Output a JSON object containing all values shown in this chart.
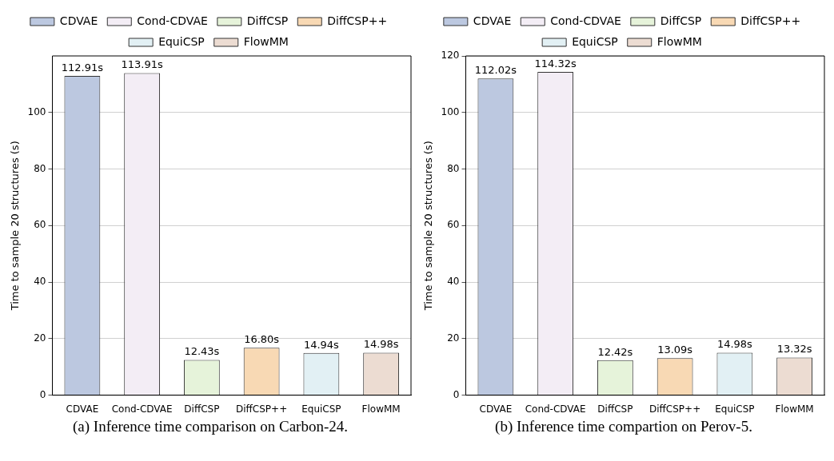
{
  "chart_data": [
    {
      "type": "bar",
      "categories": [
        "CDVAE",
        "Cond-CDVAE",
        "DiffCSP",
        "DiffCSP++",
        "EquiCSP",
        "FlowMM"
      ],
      "series": [
        {
          "name": "CDVAE",
          "color": "#bcc8e0",
          "values": [
            112.91,
            null,
            null,
            null,
            null,
            null
          ],
          "value_labels": [
            "112.91s",
            null,
            null,
            null,
            null,
            null
          ]
        },
        {
          "name": "Cond-CDVAE",
          "color": "#f3edf5",
          "values": [
            null,
            113.91,
            null,
            null,
            null,
            null
          ],
          "value_labels": [
            null,
            "113.91s",
            null,
            null,
            null,
            null
          ]
        },
        {
          "name": "DiffCSP",
          "color": "#e6f3da",
          "values": [
            null,
            null,
            12.43,
            null,
            null,
            null
          ],
          "value_labels": [
            null,
            null,
            "12.43s",
            null,
            null,
            null
          ]
        },
        {
          "name": "DiffCSP++",
          "color": "#f8d9b4",
          "values": [
            null,
            null,
            null,
            16.8,
            null,
            null
          ],
          "value_labels": [
            null,
            null,
            null,
            "16.80s",
            null,
            null
          ]
        },
        {
          "name": "EquiCSP",
          "color": "#e2f0f4",
          "values": [
            null,
            null,
            null,
            null,
            14.94,
            null
          ],
          "value_labels": [
            null,
            null,
            null,
            null,
            "14.94s",
            null
          ]
        },
        {
          "name": "FlowMM",
          "color": "#ecdcd2",
          "values": [
            null,
            null,
            null,
            null,
            null,
            14.98
          ],
          "value_labels": [
            null,
            null,
            null,
            null,
            null,
            "14.98s"
          ]
        }
      ],
      "ylabel": "Time to sample 20 structures (s)",
      "ylim": [
        0,
        120
      ],
      "yticks": [
        0,
        20,
        40,
        60,
        80,
        100
      ],
      "grid": "y",
      "legend": "top",
      "annotations": [
        "(a) Inference time comparison on Carbon-24."
      ]
    },
    {
      "type": "bar",
      "categories": [
        "CDVAE",
        "Cond-CDVAE",
        "DiffCSP",
        "DiffCSP++",
        "EquiCSP",
        "FlowMM"
      ],
      "series": [
        {
          "name": "CDVAE",
          "color": "#bcc8e0",
          "values": [
            112.02,
            null,
            null,
            null,
            null,
            null
          ],
          "value_labels": [
            "112.02s",
            null,
            null,
            null,
            null,
            null
          ]
        },
        {
          "name": "Cond-CDVAE",
          "color": "#f3edf5",
          "values": [
            null,
            114.32,
            null,
            null,
            null,
            null
          ],
          "value_labels": [
            null,
            "114.32s",
            null,
            null,
            null,
            null
          ]
        },
        {
          "name": "DiffCSP",
          "color": "#e6f3da",
          "values": [
            null,
            null,
            12.42,
            null,
            null,
            null
          ],
          "value_labels": [
            null,
            null,
            "12.42s",
            null,
            null,
            null
          ]
        },
        {
          "name": "DiffCSP++",
          "color": "#f8d9b4",
          "values": [
            null,
            null,
            null,
            13.09,
            null,
            null
          ],
          "value_labels": [
            null,
            null,
            null,
            "13.09s",
            null,
            null
          ]
        },
        {
          "name": "EquiCSP",
          "color": "#e2f0f4",
          "values": [
            null,
            null,
            null,
            null,
            14.98,
            null
          ],
          "value_labels": [
            null,
            null,
            null,
            null,
            "14.98s",
            null
          ]
        },
        {
          "name": "FlowMM",
          "color": "#ecdcd2",
          "values": [
            null,
            null,
            null,
            null,
            null,
            13.32
          ],
          "value_labels": [
            null,
            null,
            null,
            null,
            null,
            "13.32s"
          ]
        }
      ],
      "ylabel": "Time to sample 20 structures (s)",
      "ylim": [
        0,
        120
      ],
      "yticks": [
        0,
        20,
        40,
        60,
        80,
        100,
        120
      ],
      "grid": "y",
      "legend": "top",
      "annotations": [
        "(b) Inference time compartion on Perov-5."
      ]
    }
  ]
}
